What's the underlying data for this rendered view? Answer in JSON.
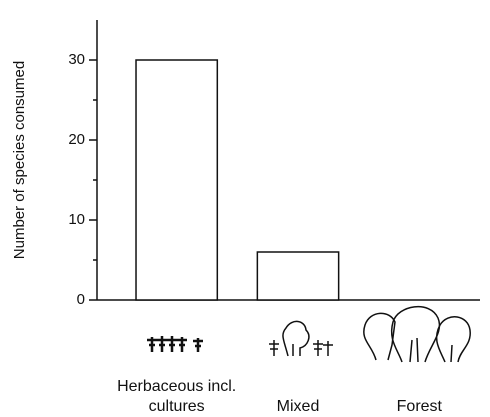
{
  "chart_data": {
    "type": "bar",
    "y_label": "Number of species consumed",
    "categories": [
      "Herbaceous incl. cultures",
      "Mixed",
      "Forest"
    ],
    "values": [
      30,
      6,
      0
    ],
    "color": "#ffffff",
    "ylim": [
      0,
      35
    ],
    "yticks": [
      0,
      10,
      20,
      30
    ],
    "minor_yticks": [
      5,
      15,
      25
    ],
    "grid": false
  }
}
